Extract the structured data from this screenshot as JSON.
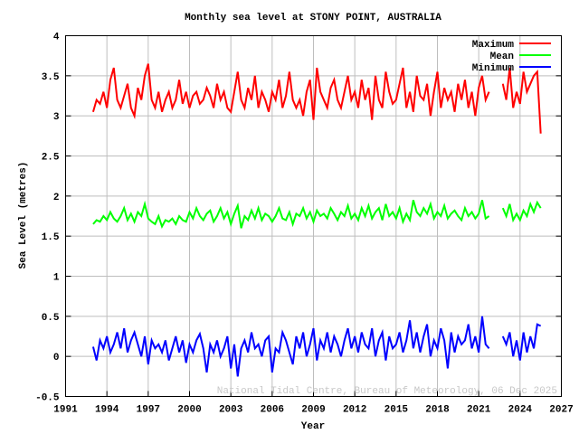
{
  "chart_data": {
    "type": "line",
    "title": "Monthly sea level at STONY POINT, AUSTRALIA",
    "xlabel": "Year",
    "ylabel": "Sea Level (metres)",
    "xlim": [
      1991,
      2027
    ],
    "ylim": [
      -0.5,
      4
    ],
    "xticks": [
      "1991",
      "1994",
      "1997",
      "2000",
      "2003",
      "2006",
      "2009",
      "2012",
      "2015",
      "2018",
      "2021",
      "2024",
      "2027"
    ],
    "yticks": [
      "-0.5",
      "0",
      "0.5",
      "1",
      "1.5",
      "2",
      "2.5",
      "3",
      "3.5",
      "4"
    ],
    "grid": true,
    "legend_position": "top-right",
    "footer": "National Tidal Centre, Bureau of Meteorology, 06 Dec 2025",
    "x_start": 1993,
    "x_step_years": 0.25,
    "series": [
      {
        "name": "Maximum",
        "color": "#ff0000",
        "values": [
          3.05,
          3.2,
          3.15,
          3.3,
          3.1,
          3.45,
          3.6,
          3.2,
          3.1,
          3.25,
          3.4,
          3.1,
          3.0,
          3.35,
          3.2,
          3.5,
          3.65,
          3.2,
          3.1,
          3.3,
          3.05,
          3.2,
          3.3,
          3.1,
          3.2,
          3.45,
          3.15,
          3.3,
          3.1,
          3.25,
          3.3,
          3.15,
          3.2,
          3.35,
          3.25,
          3.1,
          3.4,
          3.2,
          3.3,
          3.1,
          3.05,
          3.3,
          3.55,
          3.2,
          3.1,
          3.35,
          3.2,
          3.5,
          3.1,
          3.3,
          3.2,
          3.05,
          3.3,
          3.2,
          3.45,
          3.1,
          3.25,
          3.55,
          3.2,
          3.1,
          3.2,
          3.0,
          3.3,
          3.45,
          2.95,
          3.6,
          3.3,
          3.2,
          3.1,
          3.35,
          3.45,
          3.2,
          3.1,
          3.3,
          3.5,
          3.2,
          3.3,
          3.1,
          3.45,
          3.2,
          3.35,
          2.95,
          3.5,
          3.2,
          3.1,
          3.55,
          3.3,
          3.15,
          3.2,
          3.4,
          3.6,
          3.1,
          3.3,
          3.05,
          3.5,
          3.25,
          3.2,
          3.4,
          3.0,
          3.3,
          3.55,
          3.1,
          3.35,
          3.2,
          3.3,
          3.05,
          3.4,
          3.2,
          3.45,
          3.1,
          3.3,
          3.0,
          3.35,
          3.5,
          3.2,
          3.3,
          null,
          null,
          null,
          3.4,
          3.2,
          3.6,
          3.1,
          3.3,
          3.15,
          3.55,
          3.3,
          3.4,
          3.5,
          3.55,
          2.78,
          null
        ]
      },
      {
        "name": "Mean",
        "color": "#00ff00",
        "values": [
          1.65,
          1.7,
          1.68,
          1.75,
          1.7,
          1.8,
          1.72,
          1.68,
          1.75,
          1.85,
          1.7,
          1.78,
          1.68,
          1.8,
          1.75,
          1.9,
          1.72,
          1.68,
          1.65,
          1.75,
          1.62,
          1.7,
          1.68,
          1.72,
          1.65,
          1.75,
          1.7,
          1.68,
          1.8,
          1.72,
          1.85,
          1.75,
          1.7,
          1.78,
          1.82,
          1.68,
          1.75,
          1.85,
          1.72,
          1.8,
          1.65,
          1.78,
          1.88,
          1.6,
          1.75,
          1.7,
          1.82,
          1.72,
          1.85,
          1.7,
          1.78,
          1.75,
          1.68,
          1.75,
          1.85,
          1.72,
          1.7,
          1.8,
          1.65,
          1.78,
          1.75,
          1.85,
          1.72,
          1.8,
          1.68,
          1.82,
          1.75,
          1.78,
          1.72,
          1.85,
          1.78,
          1.7,
          1.8,
          1.75,
          1.88,
          1.72,
          1.78,
          1.7,
          1.85,
          1.75,
          1.88,
          1.72,
          1.8,
          1.85,
          1.7,
          1.9,
          1.75,
          1.8,
          1.72,
          1.85,
          1.68,
          1.78,
          1.7,
          1.95,
          1.8,
          1.75,
          1.85,
          1.78,
          1.9,
          1.72,
          1.8,
          1.75,
          1.88,
          1.72,
          1.78,
          1.82,
          1.75,
          1.7,
          1.85,
          1.75,
          1.8,
          1.72,
          1.78,
          1.95,
          1.72,
          1.75,
          null,
          null,
          null,
          1.85,
          1.75,
          1.9,
          1.7,
          1.78,
          1.7,
          1.82,
          1.75,
          1.9,
          1.8,
          1.92,
          1.85,
          null
        ]
      },
      {
        "name": "Minimum",
        "color": "#0000ff",
        "values": [
          0.12,
          -0.05,
          0.2,
          0.1,
          0.25,
          0.05,
          0.15,
          0.3,
          0.1,
          0.35,
          0.05,
          0.2,
          0.3,
          0.15,
          0.0,
          0.25,
          -0.1,
          0.2,
          0.1,
          0.15,
          0.05,
          0.2,
          -0.05,
          0.1,
          0.25,
          0.05,
          0.2,
          -0.08,
          0.15,
          0.05,
          0.2,
          0.28,
          0.1,
          -0.2,
          0.15,
          0.05,
          0.2,
          0.0,
          0.1,
          0.25,
          -0.15,
          0.15,
          -0.25,
          0.1,
          0.2,
          0.05,
          0.3,
          0.1,
          0.15,
          0.0,
          0.2,
          0.25,
          -0.2,
          0.1,
          0.05,
          0.3,
          0.2,
          0.05,
          -0.1,
          0.25,
          0.1,
          0.3,
          0.0,
          0.15,
          0.35,
          -0.05,
          0.2,
          0.1,
          0.3,
          0.05,
          0.25,
          0.15,
          0.0,
          0.2,
          0.35,
          0.1,
          0.25,
          0.05,
          0.3,
          0.15,
          0.1,
          0.35,
          0.0,
          0.2,
          0.3,
          -0.05,
          0.25,
          0.1,
          0.15,
          0.3,
          0.05,
          0.2,
          0.45,
          0.1,
          0.3,
          0.05,
          0.25,
          0.4,
          0.0,
          0.2,
          0.1,
          0.35,
          0.2,
          -0.15,
          0.3,
          0.05,
          0.25,
          0.15,
          0.2,
          0.4,
          0.1,
          0.25,
          0.05,
          0.5,
          0.15,
          0.1,
          null,
          null,
          null,
          0.25,
          0.15,
          0.3,
          0.0,
          0.2,
          -0.05,
          0.3,
          0.05,
          0.25,
          0.1,
          0.4,
          0.38,
          null
        ]
      }
    ]
  }
}
